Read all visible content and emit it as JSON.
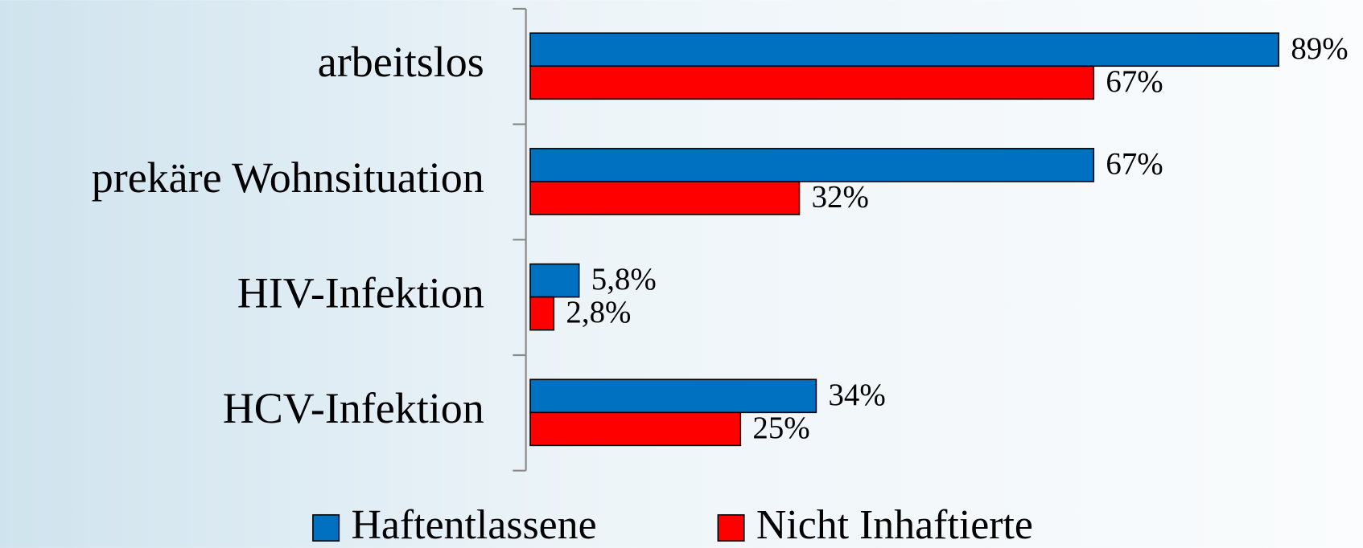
{
  "chart_data": {
    "type": "hbar",
    "categories": [
      "arbeitslos",
      "prekäre Wohnsituation",
      "HIV-Infektion",
      "HCV-Infektion"
    ],
    "series": [
      {
        "name": "Haftentlassene",
        "color": "#0070c0",
        "values": [
          89,
          67,
          5.8,
          34
        ],
        "value_labels": [
          "89%",
          "67%",
          "5,8%",
          "34%"
        ]
      },
      {
        "name": "Nicht Inhaftierte",
        "color": "#ff0000",
        "values": [
          67,
          32,
          2.8,
          25
        ],
        "value_labels": [
          "67%",
          "32%",
          "2,8%",
          "25%"
        ]
      }
    ],
    "legend": "bottom"
  }
}
